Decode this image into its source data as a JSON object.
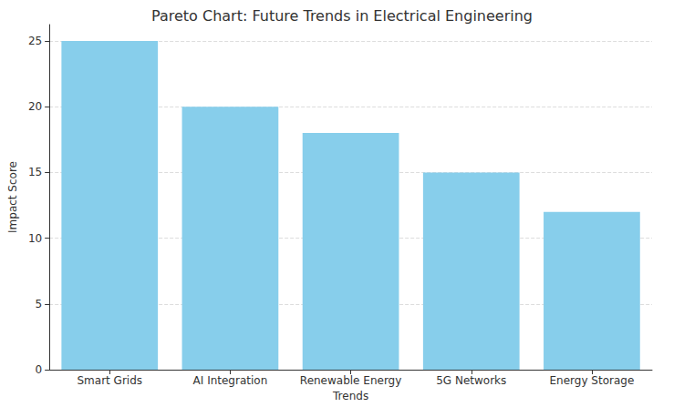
{
  "chart_data": {
    "type": "bar",
    "title": "Pareto Chart: Future Trends in Electrical Engineering",
    "x_label": "Trends",
    "y_label": "Impact Score",
    "categories": [
      "Smart Grids",
      "AI Integration",
      "Renewable Energy",
      "5G Networks",
      "Energy Storage"
    ],
    "values": [
      25,
      20,
      18,
      15,
      12
    ],
    "color": "#87ceeb",
    "ylim": [
      0,
      26.25
    ],
    "yticks": [
      0,
      5,
      10,
      15,
      20,
      25
    ],
    "grid": true
  }
}
